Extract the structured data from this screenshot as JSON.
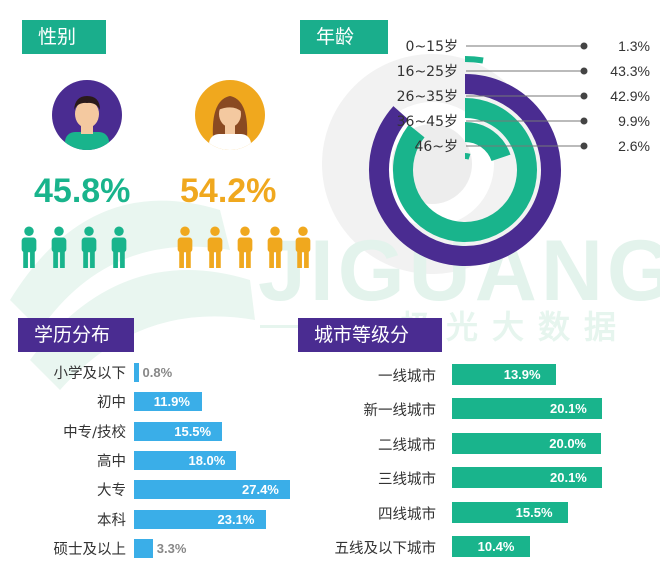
{
  "watermark": {
    "brand": "JIGUANG",
    "brand_cn": "极光大数据"
  },
  "colors": {
    "teal": "#19b48c",
    "gold": "#f0a81e",
    "purple": "#4a2c91",
    "blue": "#3aaee8",
    "title_teal": "#1aae8c",
    "title_purple": "#4a2c91"
  },
  "gender": {
    "title": "性别",
    "male": {
      "pct": "45.8%",
      "value": 45.8
    },
    "female": {
      "pct": "54.2%",
      "value": 54.2
    }
  },
  "age": {
    "title": "年龄",
    "chart_data": {
      "type": "radial-bar",
      "categories": [
        "0~15岁",
        "16~25岁",
        "26~35岁",
        "36~45岁",
        "46~岁"
      ],
      "values": [
        1.3,
        43.3,
        42.9,
        9.9,
        2.6
      ],
      "labels": [
        "1.3%",
        "43.3%",
        "42.9%",
        "9.9%",
        "2.6%"
      ]
    }
  },
  "education": {
    "title": "学历分布",
    "chart_data": {
      "type": "bar",
      "categories": [
        "小学及以下",
        "初中",
        "中专/技校",
        "高中",
        "大专",
        "本科",
        "硕士及以上"
      ],
      "values": [
        0.8,
        11.9,
        15.5,
        18.0,
        27.4,
        23.1,
        3.3
      ],
      "labels": [
        "0.8%",
        "11.9%",
        "15.5%",
        "18.0%",
        "27.4%",
        "23.1%",
        "3.3%"
      ]
    }
  },
  "city": {
    "title": "城市等级分布",
    "chart_data": {
      "type": "bar",
      "categories": [
        "一线城市",
        "新一线城市",
        "二线城市",
        "三线城市",
        "四线城市",
        "五线及以下城市"
      ],
      "values": [
        13.9,
        20.1,
        20.0,
        20.1,
        15.5,
        10.4
      ],
      "labels": [
        "13.9%",
        "20.1%",
        "20.0%",
        "20.1%",
        "15.5%",
        "10.4%"
      ]
    }
  }
}
